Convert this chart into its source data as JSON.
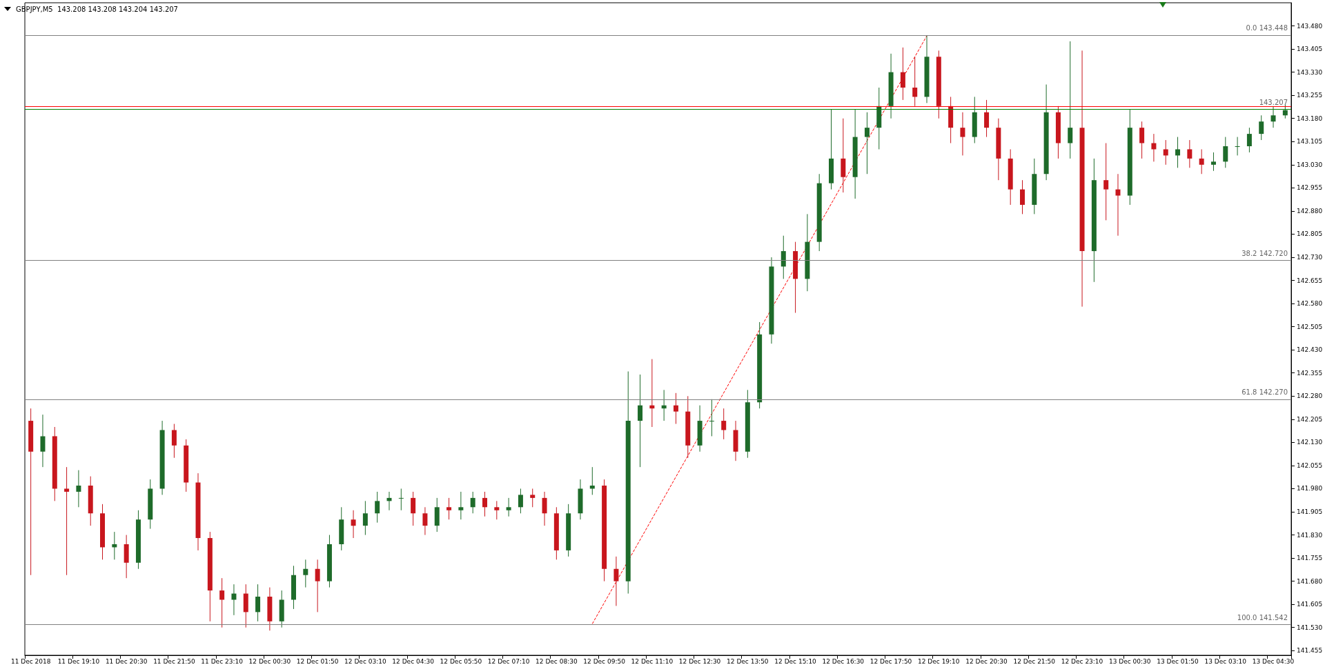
{
  "chart_data": {
    "type": "candlestick",
    "title": "GBPJPY,M5  143.208 143.208 143.204 143.207",
    "categories": [
      "11 Dec 2018",
      null,
      null,
      null,
      "11 Dec 19:10",
      null,
      null,
      null,
      "11 Dec 20:30",
      null,
      null,
      null,
      "11 Dec 21:50",
      null,
      null,
      null,
      "11 Dec 23:10",
      null,
      null,
      null,
      "12 Dec 00:30",
      null,
      null,
      null,
      "12 Dec 01:50",
      null,
      null,
      null,
      "12 Dec 03:10",
      null,
      null,
      null,
      "12 Dec 04:30",
      null,
      null,
      null,
      "12 Dec 05:50",
      null,
      null,
      null,
      "12 Dec 07:10",
      null,
      null,
      null,
      "12 Dec 08:30",
      null,
      null,
      null,
      "12 Dec 09:50",
      null,
      null,
      null,
      "12 Dec 11:10",
      null,
      null,
      null,
      "12 Dec 12:30",
      null,
      null,
      null,
      "12 Dec 13:50",
      null,
      null,
      null,
      "12 Dec 15:10",
      null,
      null,
      null,
      "12 Dec 16:30",
      null,
      null,
      null,
      "12 Dec 17:50",
      null,
      null,
      null,
      "12 Dec 19:10",
      null,
      null,
      null,
      "12 Dec 20:30",
      null,
      null,
      null,
      "12 Dec 21:50",
      null,
      null,
      null,
      "12 Dec 23:10",
      null,
      null,
      null,
      "13 Dec 00:30",
      null,
      null,
      null,
      "13 Dec 01:50",
      null,
      null,
      null,
      "13 Dec 03:10",
      null,
      null,
      null,
      "13 Dec 04:30",
      null
    ],
    "ohlc": [
      [
        142.2,
        142.24,
        141.7,
        142.1
      ],
      [
        142.1,
        142.22,
        142.05,
        142.15
      ],
      [
        142.15,
        142.18,
        141.94,
        141.98
      ],
      [
        141.98,
        142.05,
        141.7,
        141.97
      ],
      [
        141.97,
        142.04,
        141.92,
        141.99
      ],
      [
        141.99,
        142.02,
        141.86,
        141.9
      ],
      [
        141.9,
        141.93,
        141.75,
        141.79
      ],
      [
        141.79,
        141.84,
        141.75,
        141.8
      ],
      [
        141.8,
        141.83,
        141.69,
        141.74
      ],
      [
        141.74,
        141.91,
        141.72,
        141.88
      ],
      [
        141.88,
        142.01,
        141.85,
        141.98
      ],
      [
        141.98,
        142.2,
        141.96,
        142.17
      ],
      [
        142.17,
        142.19,
        142.08,
        142.12
      ],
      [
        142.12,
        142.14,
        141.97,
        142.0
      ],
      [
        142.0,
        142.03,
        141.78,
        141.82
      ],
      [
        141.82,
        141.84,
        141.55,
        141.65
      ],
      [
        141.65,
        141.69,
        141.53,
        141.62
      ],
      [
        141.62,
        141.67,
        141.57,
        141.64
      ],
      [
        141.64,
        141.67,
        141.53,
        141.58
      ],
      [
        141.58,
        141.67,
        141.55,
        141.63
      ],
      [
        141.63,
        141.66,
        141.52,
        141.55
      ],
      [
        141.55,
        141.65,
        141.53,
        141.62
      ],
      [
        141.62,
        141.73,
        141.59,
        141.7
      ],
      [
        141.7,
        141.75,
        141.66,
        141.72
      ],
      [
        141.72,
        141.75,
        141.58,
        141.68
      ],
      [
        141.68,
        141.83,
        141.66,
        141.8
      ],
      [
        141.8,
        141.92,
        141.78,
        141.88
      ],
      [
        141.88,
        141.91,
        141.82,
        141.86
      ],
      [
        141.86,
        141.94,
        141.83,
        141.9
      ],
      [
        141.9,
        141.97,
        141.87,
        141.94
      ],
      [
        141.94,
        141.97,
        141.91,
        141.95
      ],
      [
        141.95,
        141.98,
        141.91,
        141.95
      ],
      [
        141.95,
        141.97,
        141.86,
        141.9
      ],
      [
        141.9,
        141.92,
        141.83,
        141.86
      ],
      [
        141.86,
        141.95,
        141.84,
        141.92
      ],
      [
        141.92,
        141.95,
        141.88,
        141.91
      ],
      [
        141.91,
        141.97,
        141.88,
        141.92
      ],
      [
        141.92,
        141.97,
        141.9,
        141.95
      ],
      [
        141.95,
        141.97,
        141.89,
        141.92
      ],
      [
        141.92,
        141.94,
        141.88,
        141.91
      ],
      [
        141.91,
        141.95,
        141.89,
        141.92
      ],
      [
        141.92,
        141.98,
        141.9,
        141.96
      ],
      [
        141.96,
        141.98,
        141.92,
        141.95
      ],
      [
        141.95,
        141.97,
        141.86,
        141.9
      ],
      [
        141.9,
        141.92,
        141.75,
        141.78
      ],
      [
        141.78,
        141.93,
        141.76,
        141.9
      ],
      [
        141.9,
        142.01,
        141.88,
        141.98
      ],
      [
        141.98,
        142.05,
        141.96,
        141.99
      ],
      [
        141.99,
        142.01,
        141.68,
        141.72
      ],
      [
        141.72,
        141.76,
        141.6,
        141.68
      ],
      [
        141.68,
        142.36,
        141.64,
        142.2
      ],
      [
        142.2,
        142.35,
        142.05,
        142.25
      ],
      [
        142.25,
        142.4,
        142.18,
        142.24
      ],
      [
        142.24,
        142.3,
        142.2,
        142.25
      ],
      [
        142.25,
        142.29,
        142.19,
        142.23
      ],
      [
        142.23,
        142.28,
        142.08,
        142.12
      ],
      [
        142.12,
        142.25,
        142.1,
        142.2
      ],
      [
        142.2,
        142.27,
        142.15,
        142.2
      ],
      [
        142.2,
        142.24,
        142.14,
        142.17
      ],
      [
        142.17,
        142.2,
        142.07,
        142.1
      ],
      [
        142.1,
        142.3,
        142.08,
        142.26
      ],
      [
        142.26,
        142.52,
        142.24,
        142.48
      ],
      [
        142.48,
        142.73,
        142.45,
        142.7
      ],
      [
        142.7,
        142.8,
        142.66,
        142.75
      ],
      [
        142.75,
        142.78,
        142.55,
        142.66
      ],
      [
        142.66,
        142.87,
        142.62,
        142.78
      ],
      [
        142.78,
        143.0,
        142.75,
        142.97
      ],
      [
        142.97,
        143.21,
        142.95,
        143.05
      ],
      [
        143.05,
        143.18,
        142.94,
        142.99
      ],
      [
        142.99,
        143.21,
        142.92,
        143.12
      ],
      [
        143.12,
        143.2,
        143.0,
        143.15
      ],
      [
        143.15,
        143.28,
        143.08,
        143.22
      ],
      [
        143.22,
        143.39,
        143.18,
        143.33
      ],
      [
        143.33,
        143.41,
        143.24,
        143.28
      ],
      [
        143.28,
        143.38,
        143.22,
        143.25
      ],
      [
        143.25,
        143.448,
        143.23,
        143.38
      ],
      [
        143.38,
        143.4,
        143.18,
        143.22
      ],
      [
        143.22,
        143.25,
        143.1,
        143.15
      ],
      [
        143.15,
        143.2,
        143.06,
        143.12
      ],
      [
        143.12,
        143.25,
        143.1,
        143.2
      ],
      [
        143.2,
        143.24,
        143.12,
        143.15
      ],
      [
        143.15,
        143.18,
        142.98,
        143.05
      ],
      [
        143.05,
        143.08,
        142.9,
        142.95
      ],
      [
        142.95,
        142.98,
        142.87,
        142.9
      ],
      [
        142.9,
        143.05,
        142.87,
        143.0
      ],
      [
        143.0,
        143.29,
        142.98,
        143.2
      ],
      [
        143.2,
        143.22,
        143.05,
        143.1
      ],
      [
        143.1,
        143.43,
        143.05,
        143.15
      ],
      [
        143.15,
        143.4,
        142.57,
        142.75
      ],
      [
        142.75,
        143.05,
        142.65,
        142.98
      ],
      [
        142.98,
        143.1,
        142.85,
        142.95
      ],
      [
        142.95,
        143.0,
        142.8,
        142.93
      ],
      [
        142.93,
        143.21,
        142.9,
        143.15
      ],
      [
        143.15,
        143.17,
        143.05,
        143.1
      ],
      [
        143.1,
        143.13,
        143.04,
        143.08
      ],
      [
        143.08,
        143.11,
        143.03,
        143.06
      ],
      [
        143.06,
        143.12,
        143.02,
        143.08
      ],
      [
        143.08,
        143.11,
        143.02,
        143.05
      ],
      [
        143.05,
        143.08,
        143.0,
        143.03
      ],
      [
        143.03,
        143.07,
        143.01,
        143.04
      ],
      [
        143.04,
        143.12,
        143.02,
        143.09
      ],
      [
        143.09,
        143.12,
        143.06,
        143.09
      ],
      [
        143.09,
        143.15,
        143.07,
        143.13
      ],
      [
        143.13,
        143.19,
        143.11,
        143.17
      ],
      [
        143.17,
        143.22,
        143.15,
        143.19
      ],
      [
        143.19,
        143.225,
        143.18,
        143.207
      ]
    ],
    "series": [
      {
        "type": "line",
        "color": "#ff0000",
        "line_style": "dashed",
        "values": [
          null,
          null,
          null,
          null,
          null,
          null,
          null,
          null,
          null,
          null,
          null,
          null,
          null,
          null,
          null,
          null,
          null,
          null,
          null,
          null,
          null,
          null,
          null,
          null,
          null,
          null,
          null,
          null,
          null,
          null,
          null,
          null,
          null,
          null,
          null,
          null,
          null,
          null,
          null,
          null,
          null,
          null,
          null,
          null,
          null,
          null,
          null,
          141.542,
          null,
          null,
          null,
          null,
          null,
          null,
          null,
          null,
          null,
          null,
          null,
          null,
          null,
          null,
          null,
          null,
          null,
          null,
          null,
          null,
          null,
          null,
          null,
          null,
          null,
          null,
          null,
          143.448,
          null,
          null,
          null,
          null,
          null,
          null,
          null,
          null,
          null,
          null,
          null,
          null,
          null,
          null,
          null,
          null,
          null,
          null,
          null,
          null,
          null,
          null,
          null,
          null,
          null,
          null,
          null,
          null,
          null,
          null
        ]
      }
    ],
    "ylim": [
      141.44,
      143.555
    ],
    "yticks": [
      {
        "value": 141.455,
        "label": "141.455"
      },
      {
        "value": 141.53,
        "label": "141.530"
      },
      {
        "value": 141.605,
        "label": "141.605"
      },
      {
        "value": 141.68,
        "label": "141.680"
      },
      {
        "value": 141.755,
        "label": "141.755"
      },
      {
        "value": 141.83,
        "label": "141.830"
      },
      {
        "value": 141.905,
        "label": "141.905"
      },
      {
        "value": 141.98,
        "label": "141.980"
      },
      {
        "value": 142.055,
        "label": "142.055"
      },
      {
        "value": 142.13,
        "label": "142.130"
      },
      {
        "value": 142.205,
        "label": "142.205"
      },
      {
        "value": 142.28,
        "label": "142.280"
      },
      {
        "value": 142.355,
        "label": "142.355"
      },
      {
        "value": 142.43,
        "label": "142.430"
      },
      {
        "value": 142.505,
        "label": "142.505"
      },
      {
        "value": 142.58,
        "label": "142.580"
      },
      {
        "value": 142.655,
        "label": "142.655"
      },
      {
        "value": 142.73,
        "label": "142.730"
      },
      {
        "value": 142.805,
        "label": "142.805"
      },
      {
        "value": 142.88,
        "label": "142.880"
      },
      {
        "value": 142.955,
        "label": "142.955"
      },
      {
        "value": 143.03,
        "label": "143.030"
      },
      {
        "value": 143.105,
        "label": "143.105"
      },
      {
        "value": 143.18,
        "label": "143.180"
      },
      {
        "value": 143.255,
        "label": "143.255"
      },
      {
        "value": 143.33,
        "label": "143.330"
      },
      {
        "value": 143.405,
        "label": "143.405"
      },
      {
        "value": 143.48,
        "label": "143.480"
      }
    ],
    "ref_lines": [
      {
        "axis": "y",
        "value": 143.448,
        "label": "0.0 143.448",
        "color": "#808080"
      },
      {
        "axis": "y",
        "value": 142.72,
        "label": "38.2 142.720",
        "color": "#808080"
      },
      {
        "axis": "y",
        "value": 142.27,
        "label": "61.8 142.270",
        "color": "#808080"
      },
      {
        "axis": "y",
        "value": 141.542,
        "label": "100.0 141.542",
        "color": "#808080"
      },
      {
        "axis": "y",
        "value": 143.222,
        "color": "#ff0000"
      },
      {
        "axis": "y",
        "value": 143.207,
        "label": "143.207",
        "color": "#008000"
      }
    ],
    "grid": false
  }
}
